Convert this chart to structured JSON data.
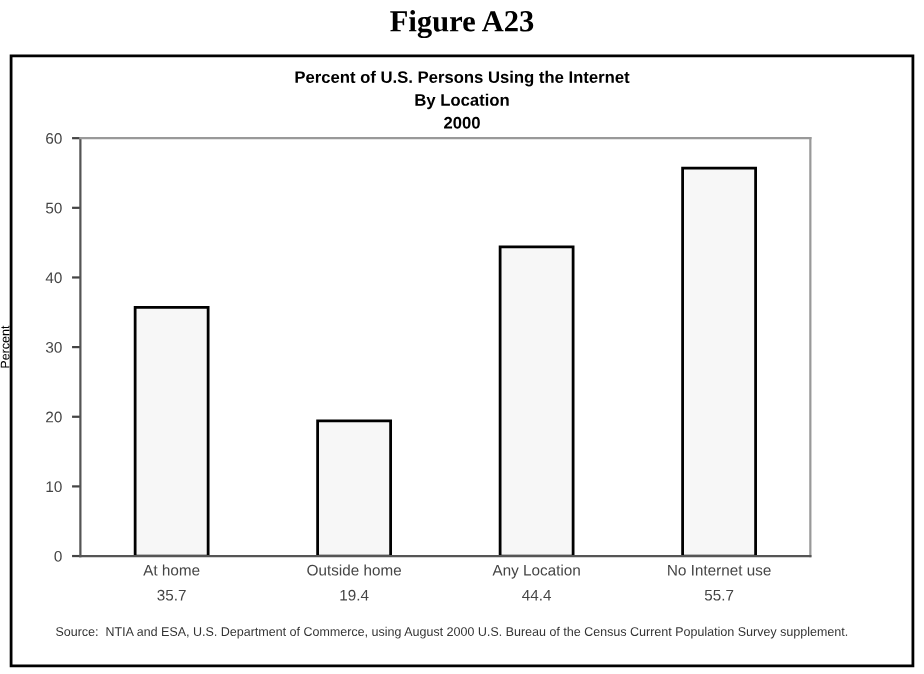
{
  "chart_data": {
    "type": "bar",
    "title": "Figure A23",
    "subtitle": "Percent of U.S. Persons Using the Internet\nBy Location\n2000",
    "ylabel": "Percent",
    "categories": [
      "At home",
      "Outside home",
      "Any Location",
      "No Internet use"
    ],
    "values": [
      35.7,
      19.4,
      44.4,
      55.7
    ],
    "color": "#f7f7f7",
    "ylim": [
      0,
      60
    ],
    "yticks": [
      0,
      10,
      20,
      30,
      40,
      50,
      60
    ],
    "grid": false,
    "legend": false,
    "data_labels": true,
    "annotations": [
      "Source:  NTIA and ESA, U.S. Department of Commerce, using August 2000 U.S. Bureau of the Census Current Population Survey supplement."
    ]
  }
}
